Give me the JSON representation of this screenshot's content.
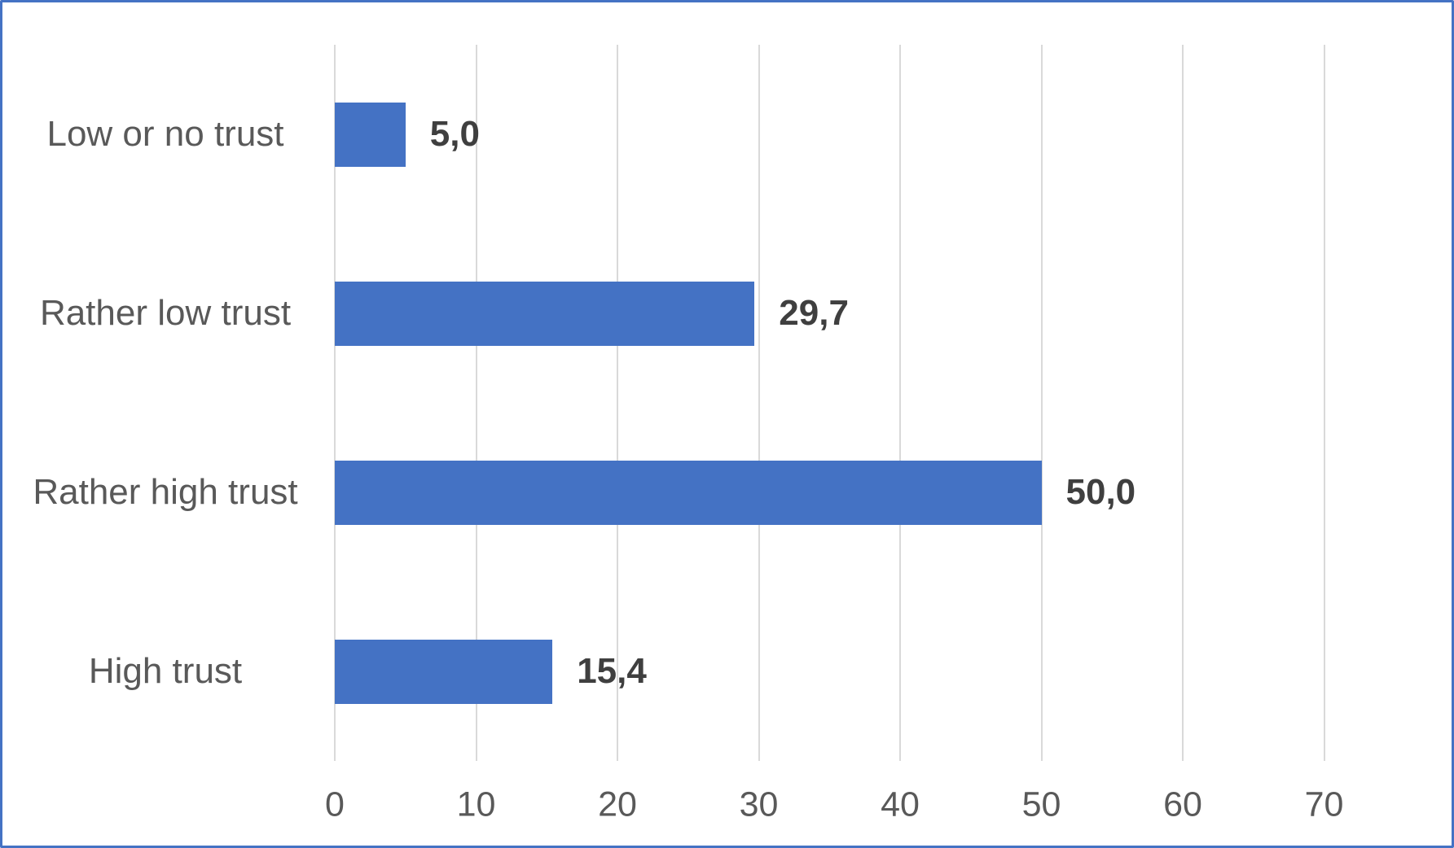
{
  "chart_data": {
    "type": "bar",
    "orientation": "horizontal",
    "title": "",
    "categories": [
      "Low or no trust",
      "Rather low trust",
      "Rather high trust",
      "High trust"
    ],
    "values": [
      5.0,
      29.7,
      50.0,
      15.4
    ],
    "value_labels": [
      "5,0",
      "29,7",
      "50,0",
      "15,4"
    ],
    "x_ticks": [
      "0",
      "10",
      "20",
      "30",
      "40",
      "50",
      "60",
      "70"
    ],
    "x_tick_values": [
      0,
      10,
      20,
      30,
      40,
      50,
      60,
      70
    ],
    "xlim": [
      0,
      70
    ],
    "xlabel": "",
    "ylabel": "",
    "grid": "vertical",
    "legend": "none",
    "colors": {
      "bar": "#4472C4",
      "border": "#4472C4",
      "gridline": "#D9D9D9",
      "category_text": "#595959",
      "tick_text": "#595959",
      "value_text": "#3F3F3F",
      "background": "#FFFFFF"
    }
  }
}
